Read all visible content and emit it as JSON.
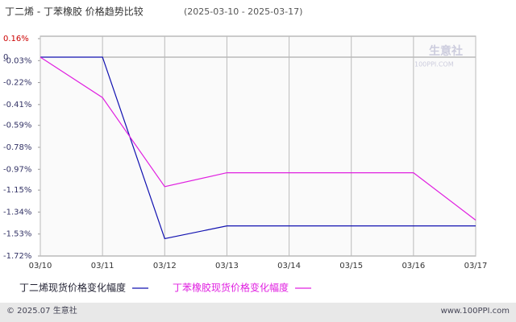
{
  "chart_data": {
    "type": "line",
    "title": "丁二烯 - 丁苯橡胶 价格趋势比较",
    "subtitle": "(2025-03-10 - 2025-03-17)",
    "categories": [
      "03/10",
      "03/11",
      "03/12",
      "03/13",
      "03/14",
      "03/15",
      "03/16",
      "03/17"
    ],
    "series": [
      {
        "name": "丁二烯现货价格变化幅度",
        "color": "#1010b0",
        "values": [
          0,
          0,
          -1.57,
          -1.46,
          -1.46,
          -1.46,
          -1.46,
          -1.46
        ]
      },
      {
        "name": "丁苯橡胶现货价格变化幅度",
        "color": "#e020e0",
        "values": [
          0,
          -0.35,
          -1.12,
          -1.0,
          -1.0,
          -1.0,
          -1.0,
          -1.41
        ]
      }
    ],
    "ylim": [
      -1.72,
      0.16
    ],
    "yticks": [
      {
        "value": 0.16,
        "label": "0.16%"
      },
      0,
      {
        "value": -0.03,
        "label": "-0.03%"
      },
      {
        "value": -0.22,
        "label": "-0.22%"
      },
      {
        "value": -0.41,
        "label": "-0.41%"
      },
      {
        "value": -0.59,
        "label": "-0.59%"
      },
      {
        "value": -0.78,
        "label": "-0.78%"
      },
      {
        "value": -0.97,
        "label": "-0.97%"
      },
      {
        "value": -1.15,
        "label": "-1.15%"
      },
      {
        "value": -1.34,
        "label": "-1.34%"
      },
      {
        "value": -1.53,
        "label": "-1.53%"
      },
      {
        "value": -1.72,
        "label": "-1.72%"
      }
    ],
    "grid": true,
    "watermark": "生意社",
    "watermark_url": "100PPI.COM",
    "footer_left": "© 2025.07 生意社",
    "footer_right": "www.100PPI.com"
  }
}
